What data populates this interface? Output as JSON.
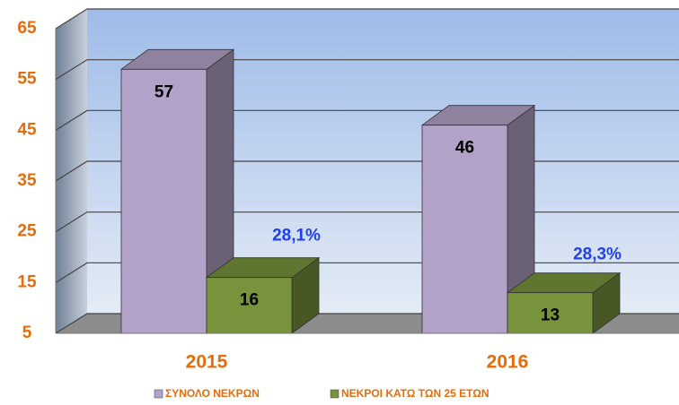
{
  "chart_data": {
    "type": "bar3d",
    "categories": [
      "2015",
      "2016"
    ],
    "series": [
      {
        "name": "ΣΥΝΟΛΟ ΝΕΚΡΩΝ",
        "color": "#b3a2c7",
        "values": [
          57,
          46
        ]
      },
      {
        "name": "ΝΕΚΡΟΙ ΚΑΤΩ ΤΩΝ 25 ΕΤΩΝ",
        "color": "#77933c",
        "values": [
          16,
          13
        ]
      }
    ],
    "annotations": [
      "28,1%",
      "28,3%"
    ],
    "ylim": [
      5,
      65
    ],
    "yticks": [
      5,
      15,
      25,
      35,
      45,
      55,
      65
    ],
    "grid": true
  }
}
